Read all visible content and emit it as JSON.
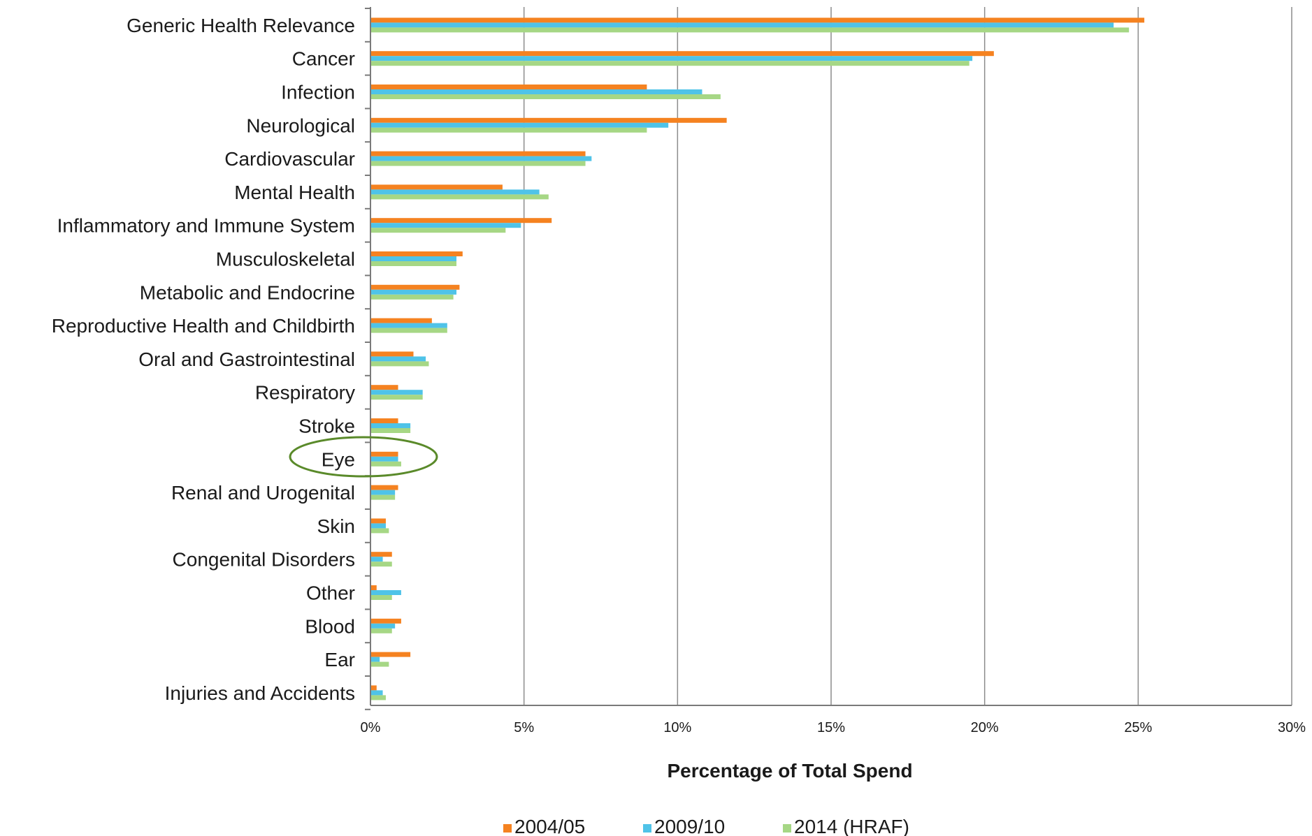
{
  "chart_data": {
    "type": "bar",
    "orientation": "horizontal",
    "categories": [
      "Generic Health Relevance",
      "Cancer",
      "Infection",
      "Neurological",
      "Cardiovascular",
      "Mental Health",
      "Inflammatory and Immune System",
      "Musculoskeletal",
      "Metabolic and Endocrine",
      "Reproductive Health and Childbirth",
      "Oral and Gastrointestinal",
      "Respiratory",
      "Stroke",
      "Eye",
      "Renal and Urogenital",
      "Skin",
      "Congenital Disorders",
      "Other",
      "Blood",
      "Ear",
      "Injuries and Accidents"
    ],
    "series": [
      {
        "name": "2004/05",
        "color": "#f58220",
        "values": [
          25.2,
          20.3,
          9.0,
          11.6,
          7.0,
          4.3,
          5.9,
          3.0,
          2.9,
          2.0,
          1.4,
          0.9,
          0.9,
          0.9,
          0.9,
          0.5,
          0.7,
          0.2,
          1.0,
          1.3,
          0.2
        ]
      },
      {
        "name": "2009/10",
        "color": "#4fc3e8",
        "values": [
          24.2,
          19.6,
          10.8,
          9.7,
          7.2,
          5.5,
          4.9,
          2.8,
          2.8,
          2.5,
          1.8,
          1.7,
          1.3,
          0.9,
          0.8,
          0.5,
          0.4,
          1.0,
          0.8,
          0.3,
          0.4
        ]
      },
      {
        "name": "2014 (HRAF)",
        "color": "#a6d785",
        "values": [
          24.7,
          19.5,
          11.4,
          9.0,
          7.0,
          5.8,
          4.4,
          2.8,
          2.7,
          2.5,
          1.9,
          1.7,
          1.3,
          1.0,
          0.8,
          0.6,
          0.7,
          0.7,
          0.7,
          0.6,
          0.5
        ]
      }
    ],
    "xlabel": "Percentage of Total Spend",
    "xlim": [
      0,
      30
    ],
    "xticks": [
      "0%",
      "5%",
      "10%",
      "15%",
      "20%",
      "25%",
      "30%"
    ],
    "grid": "vertical",
    "legend_position": "bottom",
    "highlighted_category": "Eye",
    "highlight_color": "#5a8a2a"
  }
}
